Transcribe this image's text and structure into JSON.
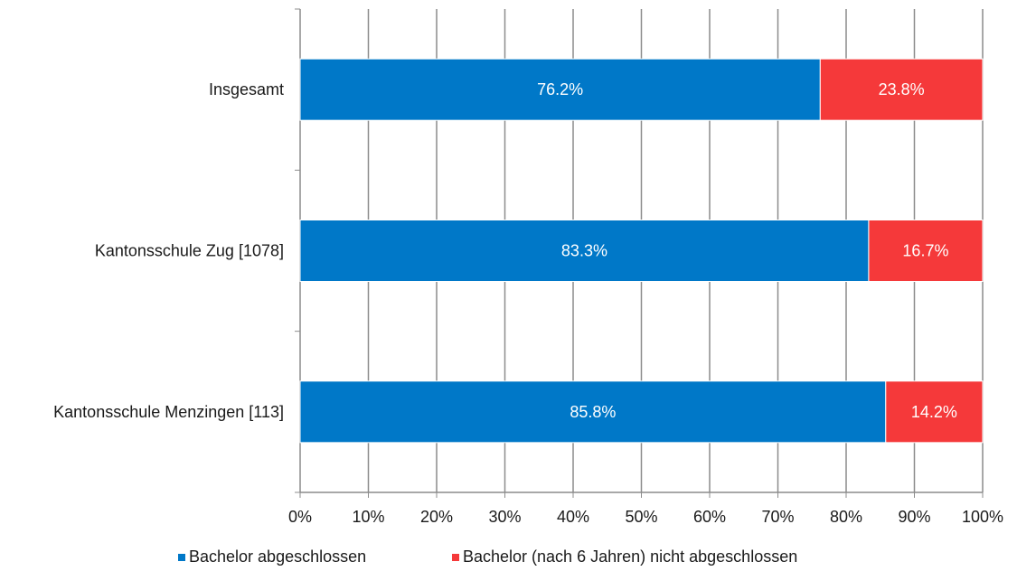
{
  "chart_data": {
    "type": "bar",
    "orientation": "horizontal",
    "stacked": true,
    "categories": [
      "Insgesamt",
      "Kantonsschule Zug [1078]",
      "Kantonsschule Menzingen [113]"
    ],
    "series": [
      {
        "name": "Bachelor abgeschlossen",
        "color": "#0078C8",
        "values": [
          76.2,
          83.3,
          85.8
        ],
        "labels": [
          "76.2%",
          "83.3%",
          "85.8%"
        ]
      },
      {
        "name": "Bachelor (nach 6 Jahren) nicht abgeschlossen",
        "color": "#F5393A",
        "values": [
          23.8,
          16.7,
          14.2
        ],
        "labels": [
          "23.8%",
          "16.7%",
          "14.2%"
        ]
      }
    ],
    "x_ticks": [
      "0%",
      "10%",
      "20%",
      "30%",
      "40%",
      "50%",
      "60%",
      "70%",
      "80%",
      "90%",
      "100%"
    ],
    "xlim": [
      0,
      100
    ],
    "grid": true,
    "legend_position": "bottom",
    "title": "",
    "xlabel": "",
    "ylabel": ""
  }
}
